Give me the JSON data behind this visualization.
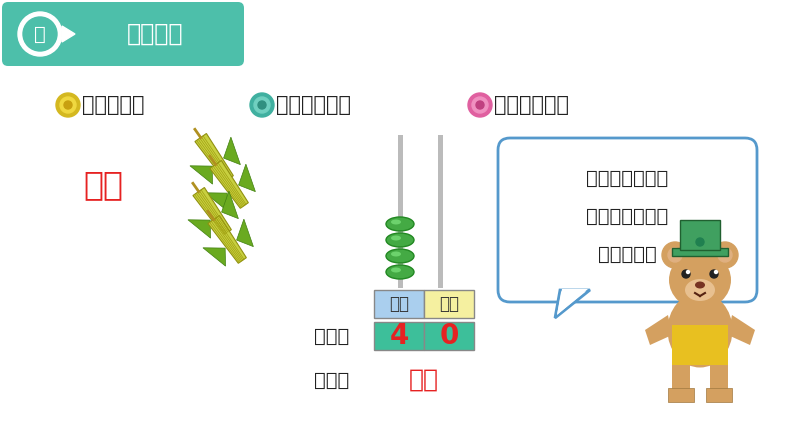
{
  "bg_color": "#ffffff",
  "title_bg": "#4dbfaa",
  "title_text_color": "#ffffff",
  "title_label": "探究新知",
  "title_circle_num": "一",
  "top_text_color": "#222222",
  "si_shi_text": "四十",
  "si_shi_color": "#e62222",
  "zhiwei_label1": "十位",
  "zhiwei_label2": "个位",
  "zhiwei_bg1": "#aacfee",
  "zhiwei_bg2": "#f5f0a0",
  "value1": "4",
  "value2": "0",
  "value_bg": "#3dbf9a",
  "value_color": "#e62222",
  "xiezuo_text": "写作：",
  "duzuo_text": "读作：",
  "duzuo_value": "四十",
  "duzuo_value_color": "#e62222",
  "label_color": "#222222",
  "bubble_text_line1": "你知道二十七和",
  "bubble_text_line2": "三十三的写法和",
  "bubble_text_line3": "读法了吗？",
  "bubble_text_color": "#222222",
  "bubble_border": "#5599cc",
  "bubble_bg": "#ffffff",
  "abacus_rod_color": "#bbbbbb",
  "bead_color": "#44aa44",
  "bead_outline": "#228822",
  "corn_body": "#c8d040",
  "corn_leaf": "#6aaa20",
  "corn_tip": "#b09020",
  "bear_body": "#d4a060",
  "bear_face": "#e8c090",
  "bear_hat": "#40a060",
  "bear_shirt": "#e8c020",
  "seed1_color": "#e0c030",
  "seed2_color": "#60c8b0",
  "seed3_color": "#f080b0",
  "text_有四十粒": "有四十粒，",
  "text_有二十七粒": "有二十七粒，",
  "text_有三十三粒": "有三十三粒。"
}
